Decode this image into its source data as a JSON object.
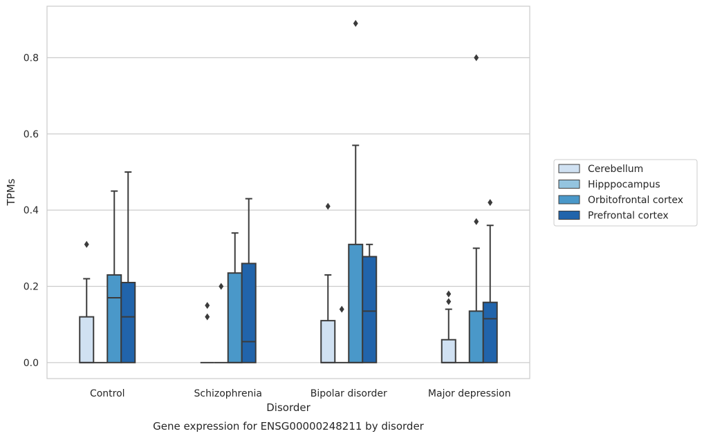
{
  "chart_data": {
    "type": "box",
    "title": "",
    "caption": "Gene expression for ENSG00000248211 by disorder",
    "xlabel": "Disorder",
    "ylabel": "TPMs",
    "categories": [
      "Control",
      "Schizophrenia",
      "Bipolar disorder",
      "Major depression"
    ],
    "ylim": [
      -0.042,
      0.935
    ],
    "yticks": [
      0.0,
      0.2,
      0.4,
      0.6,
      0.8
    ],
    "ytick_labels": [
      "0.0",
      "0.2",
      "0.4",
      "0.6",
      "0.8"
    ],
    "grid": true,
    "legend_position": "right",
    "series": [
      {
        "name": "Cerebellum",
        "color": "#d0e1f2",
        "boxes": [
          {
            "min": 0.0,
            "q1": 0.0,
            "median": 0.0,
            "q3": 0.12,
            "max": 0.22,
            "outliers": [
              0.31
            ]
          },
          {
            "min": 0.0,
            "q1": 0.0,
            "median": 0.0,
            "q3": 0.0,
            "max": 0.0,
            "outliers": [
              0.12,
              0.15
            ]
          },
          {
            "min": 0.0,
            "q1": 0.0,
            "median": 0.0,
            "q3": 0.11,
            "max": 0.23,
            "outliers": [
              0.41
            ]
          },
          {
            "min": 0.0,
            "q1": 0.0,
            "median": 0.0,
            "q3": 0.06,
            "max": 0.14,
            "outliers": [
              0.16,
              0.18
            ]
          }
        ]
      },
      {
        "name": "Hipppocampus",
        "color": "#94c4df",
        "boxes": [
          {
            "min": 0.0,
            "q1": 0.0,
            "median": 0.0,
            "q3": 0.0,
            "max": 0.0,
            "outliers": []
          },
          {
            "min": 0.0,
            "q1": 0.0,
            "median": 0.0,
            "q3": 0.0,
            "max": 0.0,
            "outliers": [
              0.2
            ]
          },
          {
            "min": 0.0,
            "q1": 0.0,
            "median": 0.0,
            "q3": 0.0,
            "max": 0.0,
            "outliers": [
              0.14
            ]
          },
          {
            "min": 0.0,
            "q1": 0.0,
            "median": 0.0,
            "q3": 0.0,
            "max": 0.0,
            "outliers": []
          }
        ]
      },
      {
        "name": "Orbitofrontal cortex",
        "color": "#4a98c9",
        "boxes": [
          {
            "min": 0.0,
            "q1": 0.0,
            "median": 0.17,
            "q3": 0.23,
            "max": 0.45,
            "outliers": []
          },
          {
            "min": 0.0,
            "q1": 0.0,
            "median": 0.0,
            "q3": 0.235,
            "max": 0.34,
            "outliers": []
          },
          {
            "min": 0.0,
            "q1": 0.0,
            "median": 0.0,
            "q3": 0.31,
            "max": 0.57,
            "outliers": [
              0.89
            ]
          },
          {
            "min": 0.0,
            "q1": 0.0,
            "median": 0.0,
            "q3": 0.135,
            "max": 0.3,
            "outliers": [
              0.37,
              0.8
            ]
          }
        ]
      },
      {
        "name": "Prefrontal cortex",
        "color": "#2164ab",
        "boxes": [
          {
            "min": 0.0,
            "q1": 0.0,
            "median": 0.12,
            "q3": 0.21,
            "max": 0.5,
            "outliers": []
          },
          {
            "min": 0.0,
            "q1": 0.0,
            "median": 0.055,
            "q3": 0.26,
            "max": 0.43,
            "outliers": []
          },
          {
            "min": 0.0,
            "q1": 0.0,
            "median": 0.135,
            "q3": 0.278,
            "max": 0.31,
            "outliers": []
          },
          {
            "min": 0.0,
            "q1": 0.0,
            "median": 0.115,
            "q3": 0.158,
            "max": 0.36,
            "outliers": [
              0.42
            ]
          }
        ]
      }
    ]
  }
}
